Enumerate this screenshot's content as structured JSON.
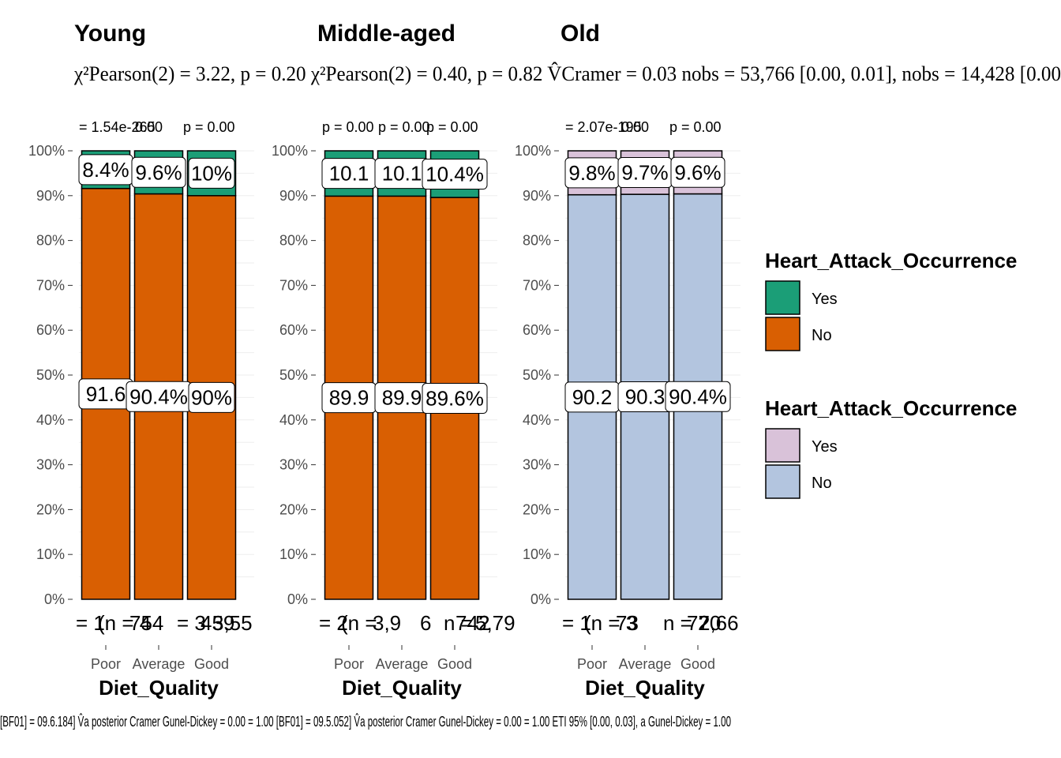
{
  "chart_data": [
    {
      "type": "bar",
      "stacked": "percent",
      "title": "Young",
      "subtitle": "χ²Pearson(2) = 3.22, p = 0.20",
      "pvalue_labels": [
        "= 1.54e-265",
        "0.00",
        "p = 0.00"
      ],
      "xlabel": "Diet_Quality",
      "categories": [
        "Poor",
        "Average",
        "Good"
      ],
      "series": [
        {
          "name": "No",
          "values": [
            91.6,
            90.4,
            90
          ],
          "labels": [
            "91.6",
            "90.4%",
            "90%"
          ]
        },
        {
          "name": "Yes",
          "values": [
            8.4,
            9.6,
            10
          ],
          "labels": [
            "8.4%",
            "9.6%",
            "10%"
          ]
        }
      ],
      "count_labels": [
        "= 1",
        "(n = 4",
        "754",
        "= 3",
        "459",
        "3,55"
      ],
      "ylim": [
        0,
        100
      ],
      "yticks": [
        "0%",
        "10%",
        "20%",
        "30%",
        "40%",
        "50%",
        "60%",
        "70%",
        "80%",
        "90%",
        "100%"
      ],
      "palette": {
        "Yes": "#1b9e77",
        "No": "#d95f02"
      }
    },
    {
      "type": "bar",
      "stacked": "percent",
      "title": "Middle-aged",
      "subtitle": "",
      "pvalue_labels": [
        "p = 0.00",
        "p = 0.00",
        "p = 0.00"
      ],
      "xlabel": "Diet_Quality",
      "categories": [
        "Poor",
        "Average",
        "Good"
      ],
      "series": [
        {
          "name": "No",
          "values": [
            89.9,
            89.9,
            89.6
          ],
          "labels": [
            "89.9",
            "89.9",
            "89.6%"
          ]
        },
        {
          "name": "Yes",
          "values": [
            10.1,
            10.1,
            10.4
          ],
          "labels": [
            "10.1",
            "10.1",
            "10.4%"
          ]
        }
      ],
      "count_labels": [
        "= 2",
        "(n =",
        "3,9",
        "6",
        "n = 2",
        "742",
        "5,79"
      ],
      "ylim": [
        0,
        100
      ],
      "yticks": [
        "0%",
        "10%",
        "20%",
        "30%",
        "40%",
        "50%",
        "60%",
        "70%",
        "80%",
        "90%",
        "100%"
      ],
      "palette": {
        "Yes": "#1b9e77",
        "No": "#d95f02"
      }
    },
    {
      "type": "bar",
      "stacked": "percent",
      "title": "Old",
      "subtitle": "",
      "pvalue_labels": [
        "= 2.07e-195",
        "0.00",
        "p = 0.00"
      ],
      "xlabel": "Diet_Quality",
      "categories": [
        "Poor",
        "Average",
        "Good"
      ],
      "series": [
        {
          "name": "No",
          "values": [
            90.2,
            90.3,
            90.4
          ],
          "labels": [
            "90.2",
            "90.3",
            "90.4%"
          ]
        },
        {
          "name": "Yes",
          "values": [
            9.8,
            9.7,
            9.6
          ],
          "labels": [
            "9.8%",
            "9.7%",
            "9.6%"
          ]
        }
      ],
      "count_labels": [
        "= 1",
        "(n = 3",
        "73",
        "n = 2",
        "770",
        "2,66"
      ],
      "ylim": [
        0,
        100
      ],
      "yticks": [
        "0%",
        "10%",
        "20%",
        "30%",
        "40%",
        "50%",
        "60%",
        "70%",
        "80%",
        "90%",
        "100%"
      ],
      "palette": {
        "Yes": "#d9c2d9",
        "No": "#b3c5df"
      }
    }
  ],
  "legends": [
    {
      "title": "Heart_Attack_Occurrence",
      "items": [
        {
          "label": "Yes",
          "color": "#1b9e77"
        },
        {
          "label": "No",
          "color": "#d95f02"
        }
      ]
    },
    {
      "title": "Heart_Attack_Occurrence",
      "items": [
        {
          "label": "Yes",
          "color": "#d9c2d9"
        },
        {
          "label": "No",
          "color": "#b3c5df"
        }
      ]
    }
  ],
  "overlay_text": {
    "subtitle_row": "χ²Pearson(2) = 3.22, p = 0.20 χ²Pearson(2) = 0.40, p = 0.82 V̂Cramer = 0.03 nobs = 53,766 [0.00, 0.01], nobs = 14,428 [0.00",
    "caption_row": "[BF01] = 09.6.184] V̂a posterior Cramer Gunel-Dickey = 0.00 = 1.00 [BF01] = 09.5.052] V̂a posterior Cramer Gunel-Dickey = 0.00 = 1.00 ETI 95% [0.00, 0.03], a Gunel-Dickey = 1.00"
  }
}
